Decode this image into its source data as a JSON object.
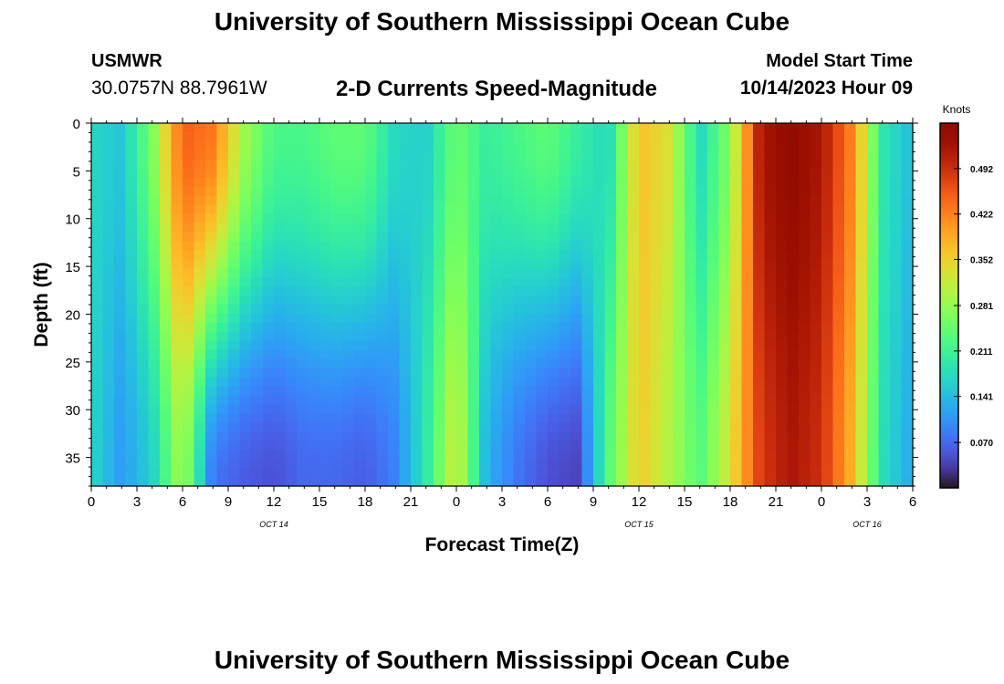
{
  "header": {
    "title": "University of Southern Mississippi Ocean Cube",
    "station": "USMWR",
    "coordinates": "30.0757N  88.7961W",
    "subtitle": "2-D Currents Speed-Magnitude",
    "model_start_label": "Model Start Time",
    "model_start_value": "10/14/2023 Hour 09"
  },
  "footer": {
    "title": "University of Southern Mississippi Ocean Cube"
  },
  "chart_data": {
    "type": "heatmap",
    "title": "2-D Currents Speed-Magnitude",
    "xlabel": "Forecast Time(Z)",
    "ylabel": "Depth (ft)",
    "x_range_hours": [
      0,
      54
    ],
    "y_range_ft": [
      0,
      38
    ],
    "y_inverted": true,
    "x_tick_labels": [
      "0",
      "3",
      "6",
      "9",
      "12",
      "15",
      "18",
      "21",
      "0",
      "3",
      "6",
      "9",
      "12",
      "15",
      "18",
      "21",
      "0",
      "3",
      "6"
    ],
    "y_tick_labels": [
      "0",
      "5",
      "10",
      "15",
      "20",
      "25",
      "30",
      "35"
    ],
    "date_labels": [
      {
        "text": "OCT 14",
        "at_hour": 12
      },
      {
        "text": "OCT 15",
        "at_hour": 36
      },
      {
        "text": "OCT 16",
        "at_hour": 51
      }
    ],
    "colorbar": {
      "unit": "Knots",
      "min": 0.0,
      "max": 0.562,
      "tick_labels": [
        "0.070",
        "0.141",
        "0.211",
        "0.281",
        "0.352",
        "0.422",
        "0.492"
      ],
      "tick_values": [
        0.07,
        0.141,
        0.211,
        0.281,
        0.352,
        0.422,
        0.492
      ],
      "colormap": "turbo"
    },
    "speed_knots_by_hour": [
      {
        "hour": 0,
        "surface": 0.17,
        "bottom": 0.17
      },
      {
        "hour": 2,
        "surface": 0.15,
        "bottom": 0.11
      },
      {
        "hour": 4,
        "surface": 0.26,
        "bottom": 0.16
      },
      {
        "hour": 6,
        "surface": 0.45,
        "bottom": 0.3
      },
      {
        "hour": 8,
        "surface": 0.43,
        "bottom": 0.08
      },
      {
        "hour": 10,
        "surface": 0.29,
        "bottom": 0.06
      },
      {
        "hour": 12,
        "surface": 0.22,
        "bottom": 0.05
      },
      {
        "hour": 14,
        "surface": 0.22,
        "bottom": 0.07
      },
      {
        "hour": 16,
        "surface": 0.24,
        "bottom": 0.07
      },
      {
        "hour": 18,
        "surface": 0.24,
        "bottom": 0.06
      },
      {
        "hour": 20,
        "surface": 0.17,
        "bottom": 0.09
      },
      {
        "hour": 22,
        "surface": 0.16,
        "bottom": 0.19
      },
      {
        "hour": 24,
        "surface": 0.25,
        "bottom": 0.33
      },
      {
        "hour": 26,
        "surface": 0.2,
        "bottom": 0.13
      },
      {
        "hour": 28,
        "surface": 0.22,
        "bottom": 0.08
      },
      {
        "hour": 30,
        "surface": 0.24,
        "bottom": 0.05
      },
      {
        "hour": 32,
        "surface": 0.2,
        "bottom": 0.04
      },
      {
        "hour": 34,
        "surface": 0.17,
        "bottom": 0.23
      },
      {
        "hour": 36,
        "surface": 0.37,
        "bottom": 0.36
      },
      {
        "hour": 38,
        "surface": 0.33,
        "bottom": 0.3
      },
      {
        "hour": 40,
        "surface": 0.17,
        "bottom": 0.23
      },
      {
        "hour": 42,
        "surface": 0.27,
        "bottom": 0.33
      },
      {
        "hour": 44,
        "surface": 0.52,
        "bottom": 0.48
      },
      {
        "hour": 46,
        "surface": 0.55,
        "bottom": 0.52
      },
      {
        "hour": 48,
        "surface": 0.52,
        "bottom": 0.49
      },
      {
        "hour": 50,
        "surface": 0.42,
        "bottom": 0.38
      },
      {
        "hour": 52,
        "surface": 0.19,
        "bottom": 0.18
      },
      {
        "hour": 54,
        "surface": 0.14,
        "bottom": 0.12
      }
    ]
  }
}
